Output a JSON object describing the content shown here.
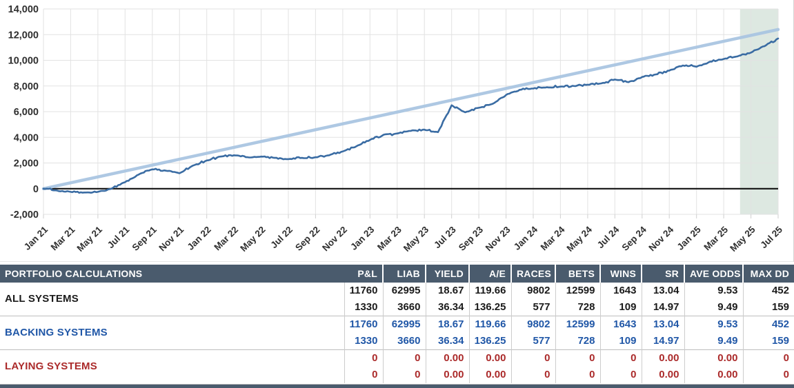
{
  "chart_data": {
    "type": "line",
    "title": "",
    "xlabel": "",
    "ylabel": "",
    "ylim": [
      -2000,
      14000
    ],
    "y_tick_step": 2000,
    "y_tick_labels": [
      "-2,000",
      "0",
      "2,000",
      "4,000",
      "6,000",
      "8,000",
      "10,000",
      "12,000",
      "14,000"
    ],
    "x_tick_labels": [
      "Jan 21",
      "Mar 21",
      "May 21",
      "Jul 21",
      "Sep 21",
      "Nov 21",
      "Jan 22",
      "Mar 22",
      "May 22",
      "Jul 22",
      "Sep 22",
      "Nov 22",
      "Jan 23",
      "Mar 23",
      "May 23",
      "Jul 23",
      "Sep 23",
      "Nov 23",
      "Jan 24",
      "Mar 24",
      "May 24",
      "Jul 24",
      "Sep 24",
      "Nov 24",
      "Jan 25",
      "Mar 25",
      "May 25",
      "Jul 25"
    ],
    "grid": true,
    "legend": "none",
    "highlight_region": {
      "from_month_index": 51.2,
      "to_month_index": 54,
      "color": "#dde8e1"
    },
    "zero_line_color": "#111111",
    "series": [
      {
        "name": "cumulative-pnl",
        "color": "#3a6ca3",
        "months_start": "Jan 21",
        "monthly_values": [
          0,
          -150,
          -250,
          -300,
          -250,
          0,
          500,
          1100,
          1500,
          1400,
          1200,
          1800,
          2200,
          2500,
          2600,
          2450,
          2500,
          2400,
          2300,
          2400,
          2450,
          2600,
          2900,
          3300,
          3800,
          4200,
          4300,
          4500,
          4600,
          4400,
          6500,
          5950,
          6300,
          6600,
          7300,
          7700,
          7800,
          7900,
          7950,
          8000,
          8100,
          8200,
          8500,
          8300,
          8700,
          8900,
          9200,
          9600,
          9500,
          9900,
          10100,
          10300,
          10600,
          11100,
          11700
        ]
      },
      {
        "name": "trend-line",
        "color": "#aac6e2",
        "endpoint_values": [
          0,
          12400
        ]
      }
    ]
  },
  "table": {
    "header": [
      "PORTFOLIO CALCULATIONS",
      "P&L",
      "LIAB",
      "YIELD",
      "A/E",
      "RACES",
      "BETS",
      "WINS",
      "SR",
      "AVE ODDS",
      "MAX DD"
    ],
    "groups": [
      {
        "label": "ALL SYSTEMS",
        "style": "all",
        "rows": [
          [
            "11760",
            "62995",
            "18.67",
            "119.66",
            "9802",
            "12599",
            "1643",
            "13.04",
            "9.53",
            "452"
          ],
          [
            "1330",
            "3660",
            "36.34",
            "136.25",
            "577",
            "728",
            "109",
            "14.97",
            "9.49",
            "159"
          ]
        ]
      },
      {
        "label": "BACKING SYSTEMS",
        "style": "backing",
        "rows": [
          [
            "11760",
            "62995",
            "18.67",
            "119.66",
            "9802",
            "12599",
            "1643",
            "13.04",
            "9.53",
            "452"
          ],
          [
            "1330",
            "3660",
            "36.34",
            "136.25",
            "577",
            "728",
            "109",
            "14.97",
            "9.49",
            "159"
          ]
        ]
      },
      {
        "label": "LAYING SYSTEMS",
        "style": "laying",
        "rows": [
          [
            "0",
            "0",
            "0.00",
            "0.00",
            "0",
            "0",
            "0",
            "0.00",
            "0.00",
            "0"
          ],
          [
            "0",
            "0",
            "0.00",
            "0.00",
            "0",
            "0",
            "0",
            "0.00",
            "0.00",
            "0"
          ]
        ]
      }
    ]
  },
  "colors": {
    "header_bg": "#4a5b6d",
    "grid": "#e2e2e2",
    "axis_text": "#2f2f2f",
    "line_main": "#3a6ca3",
    "line_trend": "#aac6e2",
    "highlight": "#dde8e1",
    "blue_text": "#2057a7",
    "red_text": "#ab2a2a"
  }
}
